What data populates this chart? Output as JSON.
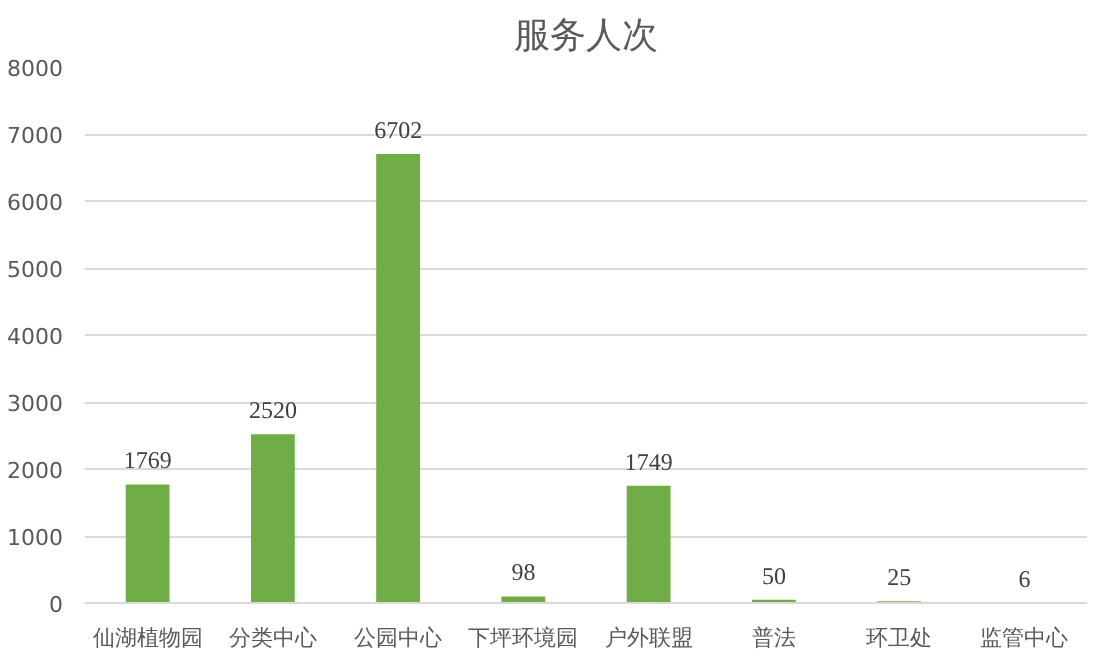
{
  "chart_data": {
    "type": "bar",
    "title": "服务人次",
    "categories": [
      "仙湖植物园",
      "分类中心",
      "公园中心",
      "下坪环境园",
      "户外联盟",
      "普法",
      "环卫处",
      "监管中心"
    ],
    "values": [
      1769,
      2520,
      6702,
      98,
      1749,
      50,
      25,
      6
    ],
    "color": "#70ad47",
    "ylim": [
      0,
      8000
    ],
    "yticks": [
      0,
      1000,
      2000,
      3000,
      4000,
      5000,
      6000,
      7000,
      8000
    ],
    "grid": "y",
    "data_labels": true
  }
}
